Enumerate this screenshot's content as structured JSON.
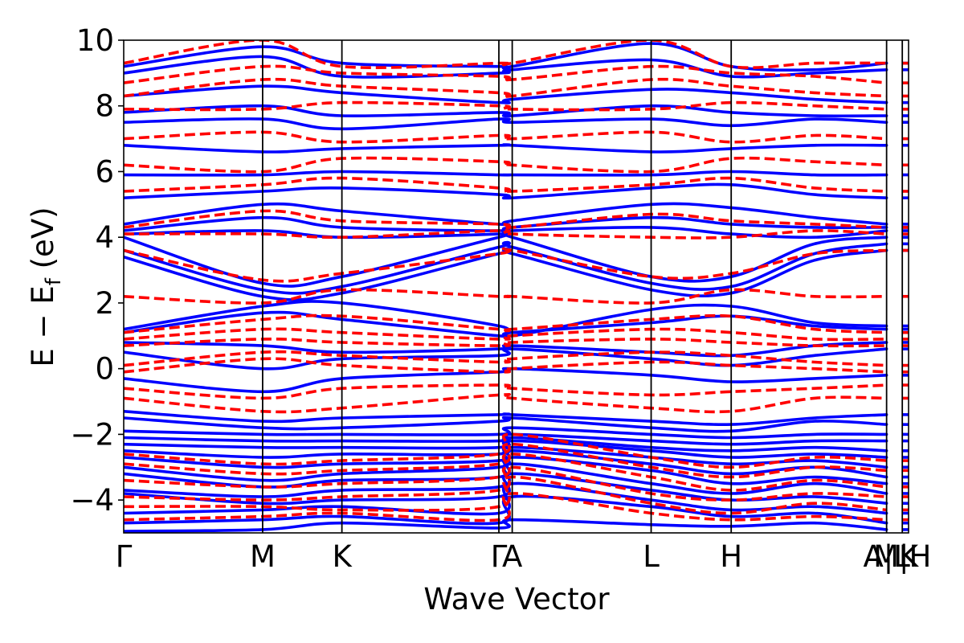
{
  "chart_data": {
    "type": "line",
    "title": "",
    "xlabel": "Wave Vector",
    "ylabel_parts": [
      "E − E",
      "f",
      " (eV)"
    ],
    "ylim": [
      -5,
      10
    ],
    "yticks": [
      10,
      8,
      6,
      4,
      2,
      0,
      -2,
      -4
    ],
    "ytick_labels": [
      "10",
      "8",
      "6",
      "4",
      "2",
      "0",
      "−2",
      "−4"
    ],
    "x_range": [
      0,
      10
    ],
    "kpath": [
      {
        "label": "Γ",
        "x": 0.0
      },
      {
        "label": "M",
        "x": 1.77
      },
      {
        "label": "K",
        "x": 2.78
      },
      {
        "label": "Γ",
        "x": 4.78
      },
      {
        "label": "A",
        "x": 4.95
      },
      {
        "label": "L",
        "x": 6.72
      },
      {
        "label": "H",
        "x": 7.74
      },
      {
        "label": "A|L",
        "x": 9.72
      },
      {
        "label": "M|H",
        "x": 9.92
      },
      {
        "label": "K",
        "x": 10.0
      }
    ],
    "grid": false,
    "series": [
      {
        "style": "solid",
        "color": "#0000ff",
        "bands": [
          [
            -4.95,
            -4.9,
            -4.7,
            -4.85,
            -4.6,
            -4.75,
            -4.8,
            -4.7,
            -4.9
          ],
          [
            -4.7,
            -4.6,
            -4.5,
            -4.7,
            -3.9,
            -4.2,
            -4.5,
            -4.4,
            -4.7
          ],
          [
            -4.4,
            -4.3,
            -4.2,
            -4.4,
            -3.5,
            -4.0,
            -4.3,
            -4.2,
            -4.4
          ],
          [
            -3.8,
            -4.1,
            -4.0,
            -3.9,
            -3.2,
            -3.7,
            -4.0,
            -3.9,
            -4.1
          ],
          [
            -3.7,
            -3.9,
            -3.7,
            -3.6,
            -2.9,
            -3.5,
            -3.8,
            -3.5,
            -3.8
          ],
          [
            -3.2,
            -3.6,
            -3.4,
            -3.3,
            -2.7,
            -3.1,
            -3.5,
            -3.3,
            -3.5
          ],
          [
            -3.0,
            -3.4,
            -3.2,
            -3.0,
            -2.5,
            -2.9,
            -3.2,
            -3.0,
            -3.3
          ],
          [
            -2.7,
            -3.0,
            -2.9,
            -2.8,
            -2.4,
            -2.7,
            -2.9,
            -2.8,
            -3.0
          ],
          [
            -2.5,
            -2.7,
            -2.6,
            -2.6,
            -2.2,
            -2.5,
            -2.7,
            -2.6,
            -2.7
          ],
          [
            -2.3,
            -2.4,
            -2.4,
            -2.4,
            -2.1,
            -2.4,
            -2.5,
            -2.4,
            -2.5
          ],
          [
            -2.1,
            -2.2,
            -2.2,
            -2.2,
            -2.0,
            -2.2,
            -2.3,
            -2.2,
            -2.2
          ],
          [
            -1.9,
            -2.0,
            -2.0,
            -2.0,
            -1.8,
            -2.0,
            -2.1,
            -2.0,
            -2.0
          ],
          [
            -1.5,
            -1.8,
            -1.8,
            -1.6,
            -1.5,
            -1.8,
            -1.9,
            -1.6,
            -1.7
          ],
          [
            -1.3,
            -1.6,
            -1.5,
            -1.4,
            -1.4,
            -1.6,
            -1.7,
            -1.5,
            -1.4
          ],
          [
            -0.3,
            -0.7,
            -0.3,
            -0.1,
            0.0,
            -0.2,
            -0.4,
            -0.3,
            -0.2
          ],
          [
            0.5,
            0.0,
            0.3,
            0.4,
            0.6,
            0.3,
            0.1,
            0.4,
            0.6
          ],
          [
            0.8,
            0.7,
            0.5,
            0.6,
            0.7,
            0.5,
            0.4,
            0.7,
            0.8
          ],
          [
            1.1,
            1.7,
            1.5,
            1.0,
            1.1,
            1.4,
            1.6,
            1.3,
            1.2
          ],
          [
            1.2,
            1.9,
            2.0,
            1.3,
            1.0,
            1.8,
            1.9,
            1.4,
            1.3
          ],
          [
            3.4,
            2.2,
            2.3,
            3.5,
            3.5,
            2.4,
            2.3,
            3.3,
            3.6
          ],
          [
            3.6,
            2.4,
            2.5,
            3.7,
            3.7,
            2.6,
            2.5,
            3.5,
            3.8
          ],
          [
            4.0,
            2.6,
            2.8,
            4.0,
            4.0,
            2.8,
            2.8,
            3.8,
            4.0
          ],
          [
            4.1,
            4.2,
            4.0,
            4.1,
            4.2,
            4.3,
            4.1,
            4.0,
            4.2
          ],
          [
            4.2,
            4.6,
            4.3,
            4.2,
            4.3,
            4.6,
            4.4,
            4.3,
            4.3
          ],
          [
            4.4,
            5.0,
            4.8,
            4.4,
            4.5,
            5.0,
            4.9,
            4.6,
            4.4
          ],
          [
            5.2,
            5.4,
            5.5,
            5.3,
            5.2,
            5.5,
            5.6,
            5.3,
            5.2
          ],
          [
            5.9,
            5.9,
            6.0,
            5.9,
            5.9,
            5.9,
            6.0,
            5.9,
            5.9
          ],
          [
            6.8,
            6.6,
            6.7,
            6.8,
            6.8,
            6.6,
            6.7,
            6.8,
            6.8
          ],
          [
            7.5,
            7.6,
            7.3,
            7.6,
            7.5,
            7.6,
            7.4,
            7.6,
            7.5
          ],
          [
            7.8,
            8.0,
            7.7,
            7.8,
            7.7,
            8.0,
            7.8,
            7.7,
            7.7
          ],
          [
            8.3,
            8.6,
            8.4,
            8.1,
            8.2,
            8.5,
            8.4,
            8.2,
            8.1
          ],
          [
            9.0,
            9.5,
            8.9,
            9.0,
            9.1,
            9.4,
            8.9,
            9.0,
            9.1
          ],
          [
            9.2,
            9.8,
            9.3,
            9.2,
            9.2,
            9.9,
            9.2,
            9.1,
            9.3
          ]
        ]
      },
      {
        "style": "dashed",
        "color": "#ff0000",
        "bands": [
          [
            -4.6,
            -4.5,
            -4.4,
            -4.6,
            -3.8,
            -4.4,
            -4.6,
            -4.5,
            -4.6
          ],
          [
            -4.2,
            -4.2,
            -4.3,
            -4.2,
            -3.3,
            -4.1,
            -4.4,
            -4.1,
            -4.3
          ],
          [
            -3.9,
            -4.0,
            -3.9,
            -3.7,
            -3.0,
            -3.8,
            -4.0,
            -3.8,
            -3.9
          ],
          [
            -3.4,
            -3.6,
            -3.5,
            -3.3,
            -2.6,
            -3.3,
            -3.7,
            -3.4,
            -3.6
          ],
          [
            -2.9,
            -3.2,
            -3.1,
            -2.9,
            -2.3,
            -3.0,
            -3.3,
            -3.0,
            -3.1
          ],
          [
            -2.6,
            -2.9,
            -2.8,
            -2.6,
            -2.0,
            -2.7,
            -3.0,
            -2.7,
            -2.8
          ],
          [
            -0.9,
            -1.3,
            -1.2,
            -0.8,
            -0.9,
            -1.2,
            -1.3,
            -0.9,
            -0.9
          ],
          [
            -0.6,
            -0.9,
            -0.6,
            -0.5,
            -0.6,
            -0.8,
            -0.7,
            -0.6,
            -0.5
          ],
          [
            -0.1,
            0.3,
            0.1,
            -0.1,
            0.0,
            0.2,
            0.1,
            0.0,
            -0.1
          ],
          [
            0.1,
            0.5,
            0.4,
            0.2,
            0.3,
            0.5,
            0.4,
            0.2,
            0.1
          ],
          [
            0.7,
            0.9,
            0.8,
            0.7,
            0.8,
            0.9,
            0.8,
            0.7,
            0.7
          ],
          [
            0.9,
            1.2,
            1.1,
            0.9,
            1.0,
            1.2,
            1.1,
            0.9,
            0.9
          ],
          [
            1.1,
            1.5,
            1.6,
            1.2,
            1.2,
            1.5,
            1.6,
            1.2,
            1.1
          ],
          [
            2.2,
            2.0,
            2.4,
            2.2,
            2.2,
            2.0,
            2.4,
            2.2,
            2.2
          ],
          [
            3.6,
            2.7,
            2.9,
            3.5,
            3.6,
            2.8,
            2.9,
            3.5,
            3.6
          ],
          [
            4.1,
            4.1,
            4.0,
            4.2,
            4.1,
            4.0,
            4.0,
            4.2,
            4.1
          ],
          [
            4.3,
            4.8,
            4.5,
            4.4,
            4.3,
            4.7,
            4.5,
            4.4,
            4.3
          ],
          [
            5.4,
            5.6,
            5.8,
            5.5,
            5.4,
            5.6,
            5.8,
            5.5,
            5.4
          ],
          [
            6.2,
            6.0,
            6.4,
            6.3,
            6.2,
            6.0,
            6.4,
            6.3,
            6.2
          ],
          [
            7.0,
            7.2,
            6.9,
            7.1,
            7.0,
            7.2,
            6.9,
            7.1,
            7.0
          ],
          [
            7.9,
            7.9,
            8.1,
            8.0,
            7.9,
            7.9,
            8.1,
            8.0,
            7.9
          ],
          [
            8.3,
            8.8,
            8.6,
            8.4,
            8.3,
            8.8,
            8.6,
            8.4,
            8.3
          ],
          [
            8.7,
            9.2,
            9.0,
            8.9,
            8.8,
            9.2,
            9.0,
            8.9,
            8.7
          ],
          [
            9.3,
            10.0,
            9.2,
            9.3,
            9.3,
            10.0,
            9.2,
            9.3,
            9.3
          ]
        ]
      }
    ]
  }
}
